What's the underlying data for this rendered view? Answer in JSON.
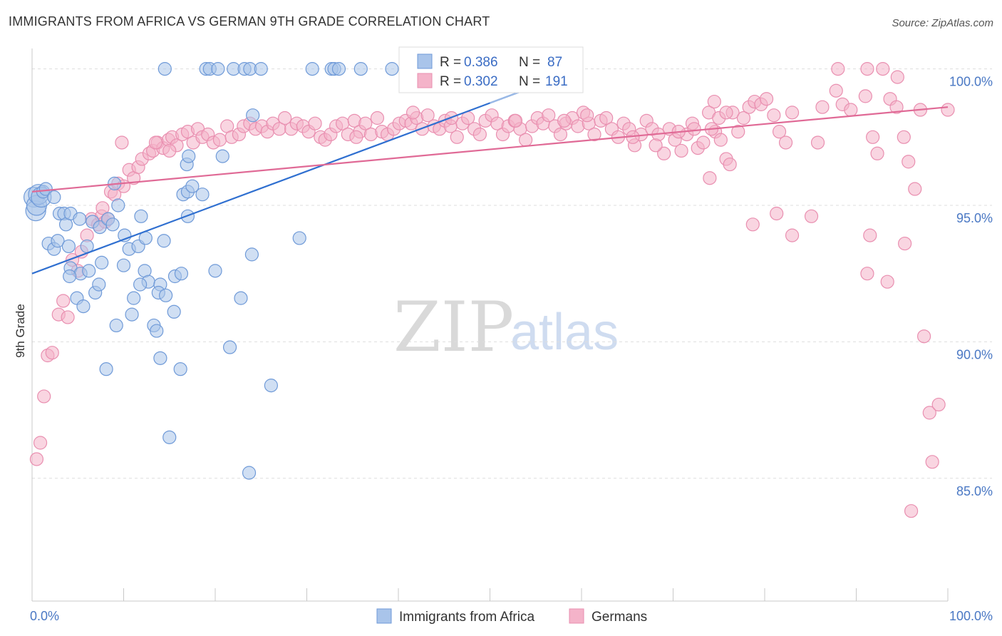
{
  "title": "IMMIGRANTS FROM AFRICA VS GERMAN 9TH GRADE CORRELATION CHART",
  "source": "Source: ZipAtlas.com",
  "watermark": {
    "zip": "ZIP",
    "atlas": "atlas"
  },
  "colors": {
    "blue_fill": "#a9c4ea",
    "blue_stroke": "#6f9ad8",
    "blue_line": "#2f6fd0",
    "pink_fill": "#f4b3c9",
    "pink_stroke": "#e98fb0",
    "pink_line": "#e06a96",
    "grid": "#dddddd",
    "tick_label": "#4a78c4"
  },
  "legend": {
    "rows": [
      {
        "r_label": "R =",
        "r_value": "0.386",
        "n_label": "N =",
        "n_value": "87",
        "series": "blue"
      },
      {
        "r_label": "R =",
        "r_value": "0.302",
        "n_label": "N =",
        "n_value": "191",
        "series": "pink"
      }
    ]
  },
  "chart_data": {
    "type": "scatter",
    "xlabel": "",
    "ylabel": "9th Grade",
    "xlim": [
      0,
      100
    ],
    "ylim": [
      80.5,
      100.8
    ],
    "x_tick_labels": [
      {
        "value": 0,
        "label": "0.0%"
      },
      {
        "value": 100,
        "label": "100.0%"
      }
    ],
    "y_tick_labels": [
      {
        "value": 100,
        "label": "100.0%"
      },
      {
        "value": 95,
        "label": "95.0%"
      },
      {
        "value": 90,
        "label": "90.0%"
      },
      {
        "value": 85,
        "label": "85.0%"
      }
    ],
    "grid": "horizontal dashed",
    "legend_placement": "bottom-center",
    "series": [
      {
        "name": "Immigrants from Africa",
        "color": "blue",
        "trend": {
          "x": [
            0,
            60
          ],
          "y": [
            92.5,
            100.0
          ]
        },
        "points": [
          [
            0.2,
            95.3
          ],
          [
            0.4,
            94.8
          ],
          [
            0.5,
            95.0
          ],
          [
            0.7,
            95.4
          ],
          [
            1.0,
            95.3
          ],
          [
            1.2,
            95.5
          ],
          [
            1.5,
            95.6
          ],
          [
            2.4,
            95.3
          ],
          [
            3.0,
            94.7
          ],
          [
            3.5,
            94.7
          ],
          [
            3.7,
            94.3
          ],
          [
            4.2,
            94.7
          ],
          [
            5.2,
            94.5
          ],
          [
            6.6,
            94.4
          ],
          [
            7.4,
            94.2
          ],
          [
            8.3,
            94.5
          ],
          [
            8.8,
            94.3
          ],
          [
            9.0,
            95.8
          ],
          [
            9.4,
            95.0
          ],
          [
            1.8,
            93.6
          ],
          [
            2.4,
            93.4
          ],
          [
            2.8,
            93.7
          ],
          [
            4.0,
            93.5
          ],
          [
            6.0,
            93.5
          ],
          [
            10.1,
            93.9
          ],
          [
            10.6,
            93.4
          ],
          [
            11.6,
            93.5
          ],
          [
            11.9,
            94.6
          ],
          [
            12.4,
            93.8
          ],
          [
            14.4,
            93.7
          ],
          [
            4.2,
            92.7
          ],
          [
            5.3,
            92.5
          ],
          [
            6.2,
            92.6
          ],
          [
            7.6,
            92.9
          ],
          [
            10.0,
            92.8
          ],
          [
            12.3,
            92.6
          ],
          [
            12.7,
            92.2
          ],
          [
            14.0,
            92.1
          ],
          [
            15.6,
            92.4
          ],
          [
            16.3,
            92.5
          ],
          [
            20.0,
            92.6
          ],
          [
            24.0,
            93.2
          ],
          [
            29.2,
            93.8
          ],
          [
            4.1,
            92.4
          ],
          [
            4.9,
            91.6
          ],
          [
            5.6,
            91.3
          ],
          [
            6.9,
            91.8
          ],
          [
            7.3,
            92.1
          ],
          [
            11.1,
            91.6
          ],
          [
            11.8,
            92.1
          ],
          [
            13.8,
            91.8
          ],
          [
            14.6,
            91.7
          ],
          [
            15.5,
            91.1
          ],
          [
            17.0,
            94.6
          ],
          [
            18.6,
            95.4
          ],
          [
            22.8,
            91.6
          ],
          [
            10.9,
            91.0
          ],
          [
            13.3,
            90.6
          ],
          [
            13.6,
            90.4
          ],
          [
            9.2,
            90.6
          ],
          [
            14.0,
            89.4
          ],
          [
            8.1,
            89.0
          ],
          [
            16.2,
            89.0
          ],
          [
            21.6,
            89.8
          ],
          [
            26.1,
            88.4
          ],
          [
            15.0,
            86.5
          ],
          [
            23.7,
            85.2
          ],
          [
            16.5,
            95.4
          ],
          [
            17.0,
            95.5
          ],
          [
            17.5,
            95.7
          ],
          [
            16.9,
            96.5
          ],
          [
            17.1,
            96.8
          ],
          [
            20.8,
            96.8
          ],
          [
            24.1,
            98.3
          ],
          [
            14.5,
            100.0
          ],
          [
            19.0,
            100.0
          ],
          [
            19.4,
            100.0
          ],
          [
            20.3,
            100.0
          ],
          [
            22.0,
            100.0
          ],
          [
            23.2,
            100.0
          ],
          [
            23.8,
            100.0
          ],
          [
            25.0,
            100.0
          ],
          [
            30.6,
            100.0
          ],
          [
            32.7,
            100.0
          ],
          [
            33.0,
            100.0
          ],
          [
            33.5,
            100.0
          ],
          [
            35.9,
            100.0
          ],
          [
            39.3,
            100.0
          ]
        ]
      },
      {
        "name": "Germans",
        "color": "pink",
        "trend": {
          "x": [
            0,
            100
          ],
          "y": [
            95.5,
            98.6
          ]
        },
        "points": [
          [
            0.5,
            85.7
          ],
          [
            0.9,
            86.3
          ],
          [
            1.3,
            88.0
          ],
          [
            1.7,
            89.5
          ],
          [
            2.2,
            89.6
          ],
          [
            2.9,
            91.0
          ],
          [
            3.4,
            91.5
          ],
          [
            3.9,
            90.9
          ],
          [
            4.4,
            93.0
          ],
          [
            5.0,
            92.6
          ],
          [
            5.4,
            93.3
          ],
          [
            6.0,
            93.9
          ],
          [
            6.5,
            94.5
          ],
          [
            7.2,
            94.3
          ],
          [
            7.6,
            94.6
          ],
          [
            8.0,
            94.4
          ],
          [
            8.3,
            94.5
          ],
          [
            7.7,
            94.9
          ],
          [
            8.6,
            95.5
          ],
          [
            9.0,
            95.4
          ],
          [
            9.4,
            95.8
          ],
          [
            10.0,
            95.7
          ],
          [
            10.6,
            96.3
          ],
          [
            11.1,
            96.0
          ],
          [
            11.6,
            96.4
          ],
          [
            12.0,
            96.7
          ],
          [
            12.8,
            96.9
          ],
          [
            13.2,
            97.0
          ],
          [
            13.7,
            97.3
          ],
          [
            14.3,
            97.1
          ],
          [
            14.9,
            97.4
          ],
          [
            15.3,
            97.5
          ],
          [
            15.8,
            97.2
          ],
          [
            16.4,
            97.6
          ],
          [
            17.0,
            97.7
          ],
          [
            17.6,
            97.3
          ],
          [
            18.1,
            97.8
          ],
          [
            18.6,
            97.5
          ],
          [
            19.2,
            97.6
          ],
          [
            19.8,
            97.3
          ],
          [
            20.5,
            97.4
          ],
          [
            21.3,
            97.9
          ],
          [
            21.8,
            97.5
          ],
          [
            22.6,
            97.6
          ],
          [
            23.1,
            97.9
          ],
          [
            23.8,
            98.0
          ],
          [
            24.4,
            97.8
          ],
          [
            25.1,
            97.9
          ],
          [
            25.7,
            97.7
          ],
          [
            26.3,
            98.0
          ],
          [
            27.0,
            97.8
          ],
          [
            27.6,
            98.2
          ],
          [
            28.3,
            97.8
          ],
          [
            28.9,
            98.0
          ],
          [
            29.6,
            97.9
          ],
          [
            30.2,
            97.7
          ],
          [
            30.9,
            98.0
          ],
          [
            31.5,
            97.5
          ],
          [
            32.0,
            97.4
          ],
          [
            32.6,
            97.6
          ],
          [
            33.2,
            97.9
          ],
          [
            33.9,
            98.0
          ],
          [
            34.5,
            97.6
          ],
          [
            35.2,
            98.1
          ],
          [
            35.8,
            97.7
          ],
          [
            36.4,
            98.0
          ],
          [
            37.0,
            97.6
          ],
          [
            37.7,
            98.2
          ],
          [
            38.2,
            97.7
          ],
          [
            38.8,
            97.6
          ],
          [
            39.5,
            97.8
          ],
          [
            40.1,
            98.0
          ],
          [
            40.8,
            98.1
          ],
          [
            41.4,
            98.0
          ],
          [
            42.0,
            98.2
          ],
          [
            42.6,
            97.8
          ],
          [
            43.2,
            98.3
          ],
          [
            43.9,
            97.9
          ],
          [
            44.5,
            97.8
          ],
          [
            45.1,
            98.1
          ],
          [
            45.7,
            97.9
          ],
          [
            46.4,
            97.5
          ],
          [
            47.0,
            98.0
          ],
          [
            47.6,
            98.2
          ],
          [
            48.3,
            97.8
          ],
          [
            48.9,
            97.6
          ],
          [
            49.5,
            98.1
          ],
          [
            50.2,
            98.3
          ],
          [
            50.8,
            98.0
          ],
          [
            51.4,
            97.6
          ],
          [
            52.0,
            97.9
          ],
          [
            52.7,
            98.1
          ],
          [
            53.3,
            97.8
          ],
          [
            53.9,
            97.4
          ],
          [
            54.6,
            97.9
          ],
          [
            55.2,
            98.2
          ],
          [
            55.8,
            98.0
          ],
          [
            56.4,
            98.3
          ],
          [
            57.1,
            97.9
          ],
          [
            57.7,
            97.6
          ],
          [
            58.3,
            98.0
          ],
          [
            59.0,
            98.2
          ],
          [
            59.6,
            97.9
          ],
          [
            60.2,
            98.4
          ],
          [
            60.8,
            98.0
          ],
          [
            61.4,
            97.6
          ],
          [
            62.1,
            98.1
          ],
          [
            62.7,
            98.2
          ],
          [
            63.3,
            97.8
          ],
          [
            64.0,
            97.5
          ],
          [
            64.6,
            98.0
          ],
          [
            65.2,
            97.8
          ],
          [
            65.8,
            97.2
          ],
          [
            66.5,
            97.6
          ],
          [
            67.1,
            98.1
          ],
          [
            67.7,
            97.8
          ],
          [
            68.4,
            97.6
          ],
          [
            69.0,
            96.9
          ],
          [
            69.6,
            97.8
          ],
          [
            70.2,
            97.4
          ],
          [
            70.9,
            97.0
          ],
          [
            71.5,
            97.6
          ],
          [
            72.1,
            98.0
          ],
          [
            72.7,
            97.1
          ],
          [
            73.3,
            97.3
          ],
          [
            74.0,
            96.0
          ],
          [
            74.6,
            97.7
          ],
          [
            75.2,
            97.4
          ],
          [
            75.8,
            96.7
          ],
          [
            76.5,
            98.4
          ],
          [
            77.1,
            97.7
          ],
          [
            77.7,
            98.2
          ],
          [
            78.3,
            98.6
          ],
          [
            78.9,
            98.8
          ],
          [
            79.6,
            98.7
          ],
          [
            80.2,
            98.9
          ],
          [
            81.0,
            98.3
          ],
          [
            81.6,
            97.7
          ],
          [
            82.3,
            97.3
          ],
          [
            83.0,
            98.4
          ],
          [
            73.9,
            98.4
          ],
          [
            74.5,
            98.8
          ],
          [
            75.0,
            98.2
          ],
          [
            15.0,
            97.0
          ],
          [
            13.5,
            97.3
          ],
          [
            9.8,
            97.3
          ],
          [
            35.4,
            97.5
          ],
          [
            41.6,
            98.4
          ],
          [
            45.8,
            98.2
          ],
          [
            52.8,
            98.1
          ],
          [
            58.1,
            98.1
          ],
          [
            60.6,
            98.3
          ],
          [
            65.6,
            97.5
          ],
          [
            68.1,
            97.2
          ],
          [
            70.6,
            97.7
          ],
          [
            72.3,
            97.8
          ],
          [
            74.2,
            97.8
          ],
          [
            75.8,
            98.4
          ],
          [
            76.2,
            96.5
          ],
          [
            78.7,
            94.3
          ],
          [
            81.3,
            94.7
          ],
          [
            83.0,
            93.9
          ],
          [
            85.1,
            94.6
          ],
          [
            85.8,
            97.3
          ],
          [
            86.3,
            98.6
          ],
          [
            87.8,
            99.2
          ],
          [
            88.5,
            98.7
          ],
          [
            89.4,
            98.5
          ],
          [
            91.0,
            99.0
          ],
          [
            91.8,
            97.5
          ],
          [
            92.3,
            96.9
          ],
          [
            93.7,
            98.9
          ],
          [
            94.4,
            98.6
          ],
          [
            95.2,
            97.5
          ],
          [
            95.7,
            96.6
          ],
          [
            96.4,
            95.6
          ],
          [
            97.0,
            98.5
          ],
          [
            91.5,
            93.9
          ],
          [
            91.2,
            92.5
          ],
          [
            93.4,
            92.2
          ],
          [
            95.3,
            93.6
          ],
          [
            97.4,
            90.2
          ],
          [
            98.0,
            87.4
          ],
          [
            98.3,
            85.6
          ],
          [
            99.0,
            87.7
          ],
          [
            96.0,
            83.8
          ],
          [
            100.0,
            98.5
          ],
          [
            88.0,
            100.0
          ],
          [
            91.2,
            100.0
          ],
          [
            92.9,
            100.0
          ],
          [
            94.5,
            99.7
          ]
        ]
      }
    ]
  },
  "bottom_legend": [
    {
      "label": "Immigrants from Africa",
      "series": "blue"
    },
    {
      "label": "Germans",
      "series": "pink"
    }
  ]
}
